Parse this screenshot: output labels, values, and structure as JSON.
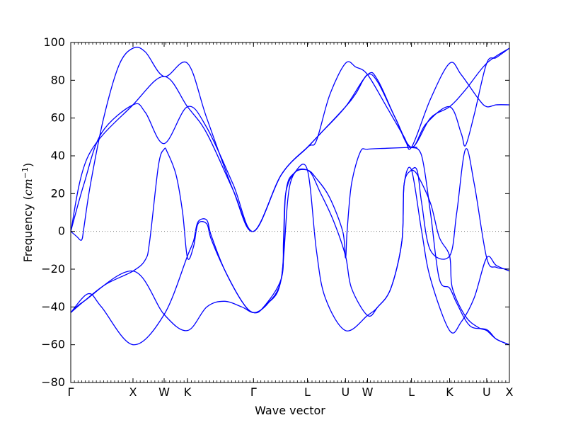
{
  "chart_data": {
    "type": "line",
    "title": "",
    "xlabel": "Wave vector",
    "ylabel": "Frequency (cm⁻¹)",
    "ylabel_prefix": "Frequency (",
    "ylabel_unit": "cm",
    "ylabel_exp": "−1",
    "ylabel_suffix": ")",
    "ylim": [
      -80,
      100
    ],
    "xlim": [
      0,
      1
    ],
    "grid": false,
    "line_color": "#0000ff",
    "zero_line_color": "#808080",
    "yticks": [
      -80,
      -60,
      -40,
      -20,
      0,
      20,
      40,
      60,
      80,
      100
    ],
    "ytick_labels": [
      "−80",
      "−60",
      "−40",
      "−20",
      "0",
      "20",
      "40",
      "60",
      "80",
      "100"
    ],
    "high_symmetry_points": [
      {
        "label": "Γ",
        "x": 0.0
      },
      {
        "label": "X",
        "x": 0.1419
      },
      {
        "label": "W",
        "x": 0.2129
      },
      {
        "label": "K",
        "x": 0.2661
      },
      {
        "label": "Γ",
        "x": 0.4166
      },
      {
        "label": "L",
        "x": 0.5395
      },
      {
        "label": "U",
        "x": 0.6264
      },
      {
        "label": "W",
        "x": 0.6766
      },
      {
        "label": "L",
        "x": 0.7768
      },
      {
        "label": "K",
        "x": 0.8637
      },
      {
        "label": "U",
        "x": 0.9482
      },
      {
        "label": "X",
        "x": 1.0
      }
    ],
    "series": [
      {
        "values": [
          [
            0,
            0
          ],
          [
            0.015,
            -3
          ],
          [
            0.021,
            -4.5
          ],
          [
            0.026,
            -4
          ],
          [
            0.03,
            2
          ],
          [
            0.045,
            25
          ],
          [
            0.075,
            60
          ],
          [
            0.11,
            88
          ],
          [
            0.1419,
            97
          ],
          [
            0.17,
            95
          ],
          [
            0.2129,
            82
          ],
          [
            0.2661,
            89
          ],
          [
            0.31,
            60
          ],
          [
            0.37,
            22
          ],
          [
            0.4166,
            0
          ],
          [
            0.48,
            30
          ],
          [
            0.5395,
            44.5
          ],
          [
            0.56,
            48
          ],
          [
            0.59,
            72
          ],
          [
            0.6264,
            89
          ],
          [
            0.65,
            87
          ],
          [
            0.6766,
            83
          ],
          [
            0.72,
            66
          ],
          [
            0.76,
            50
          ],
          [
            0.7768,
            44.5
          ],
          [
            0.82,
            70
          ],
          [
            0.8637,
            89
          ],
          [
            0.89,
            83
          ],
          [
            0.93,
            70
          ],
          [
            0.9482,
            66
          ],
          [
            0.97,
            67
          ],
          [
            1.0,
            67
          ]
        ]
      },
      {
        "values": [
          [
            0,
            0
          ],
          [
            0.03,
            25
          ],
          [
            0.07,
            52
          ],
          [
            0.1419,
            67
          ],
          [
            0.17,
            63
          ],
          [
            0.2129,
            46.5
          ],
          [
            0.2661,
            66
          ],
          [
            0.31,
            55
          ],
          [
            0.37,
            25
          ],
          [
            0.4166,
            0
          ],
          [
            0.48,
            30
          ],
          [
            0.5395,
            44.5
          ],
          [
            0.57,
            52
          ],
          [
            0.6264,
            66
          ],
          [
            0.65,
            73
          ],
          [
            0.6766,
            83
          ],
          [
            0.7,
            79
          ],
          [
            0.74,
            60
          ],
          [
            0.7768,
            44.5
          ],
          [
            0.81,
            57
          ],
          [
            0.8637,
            66
          ],
          [
            0.89,
            52
          ],
          [
            0.9,
            45.5
          ],
          [
            0.92,
            62
          ],
          [
            0.9482,
            89
          ],
          [
            0.97,
            92
          ],
          [
            1.0,
            97
          ]
        ]
      },
      {
        "values": [
          [
            0,
            0
          ],
          [
            0.04,
            40
          ],
          [
            0.1419,
            67
          ],
          [
            0.2129,
            82
          ],
          [
            0.2661,
            66
          ],
          [
            0.31,
            52
          ],
          [
            0.37,
            22
          ],
          [
            0.4166,
            0
          ],
          [
            0.48,
            30
          ],
          [
            0.5395,
            44.5
          ],
          [
            0.57,
            52
          ],
          [
            0.6264,
            66
          ],
          [
            0.6766,
            83
          ],
          [
            0.7,
            80
          ],
          [
            0.74,
            60
          ],
          [
            0.7768,
            44.5
          ],
          [
            0.82,
            60
          ],
          [
            0.8637,
            66
          ],
          [
            0.9,
            75
          ],
          [
            0.9482,
            89
          ],
          [
            1.0,
            97
          ]
        ]
      },
      {
        "values": [
          [
            0,
            -43
          ],
          [
            0.03,
            -37
          ],
          [
            0.08,
            -28
          ],
          [
            0.1419,
            -21
          ],
          [
            0.17,
            -15
          ],
          [
            0.18,
            -5
          ],
          [
            0.2,
            35
          ],
          [
            0.2129,
            43.5
          ],
          [
            0.22,
            42
          ],
          [
            0.24,
            30
          ],
          [
            0.255,
            10
          ],
          [
            0.2661,
            -14
          ],
          [
            0.28,
            -8
          ],
          [
            0.29,
            4
          ],
          [
            0.31,
            4
          ],
          [
            0.32,
            -4
          ],
          [
            0.35,
            -20
          ],
          [
            0.39,
            -37
          ],
          [
            0.4166,
            -43
          ],
          [
            0.44,
            -40
          ],
          [
            0.48,
            -25
          ],
          [
            0.485,
            -5
          ],
          [
            0.49,
            20
          ],
          [
            0.51,
            31
          ],
          [
            0.5395,
            32.5
          ],
          [
            0.56,
            28
          ],
          [
            0.59,
            18
          ],
          [
            0.62,
            0
          ],
          [
            0.6264,
            -14
          ],
          [
            0.63,
            0
          ],
          [
            0.64,
            25
          ],
          [
            0.66,
            42
          ],
          [
            0.6766,
            43.5
          ],
          [
            0.72,
            44
          ],
          [
            0.7768,
            44.5
          ],
          [
            0.79,
            44.5
          ]
        ]
      },
      {
        "values": [
          [
            0.7768,
            32.5
          ],
          [
            0.79,
            30
          ],
          [
            0.82,
            15
          ],
          [
            0.84,
            -3
          ],
          [
            0.8637,
            -13
          ],
          [
            0.87,
            -30
          ],
          [
            0.9,
            -45
          ],
          [
            0.93,
            -51
          ],
          [
            0.9482,
            -52.5
          ],
          [
            0.97,
            -57
          ],
          [
            1.0,
            -60
          ]
        ]
      },
      {
        "values": [
          [
            0,
            -43
          ],
          [
            0.03,
            -37
          ],
          [
            0.1419,
            -21
          ],
          [
            0.2129,
            -44
          ],
          [
            0.2661,
            -52.5
          ],
          [
            0.31,
            -40
          ],
          [
            0.35,
            -37
          ],
          [
            0.39,
            -40
          ],
          [
            0.4166,
            -43
          ],
          [
            0.44,
            -40
          ],
          [
            0.48,
            -25
          ],
          [
            0.49,
            20
          ],
          [
            0.51,
            31
          ],
          [
            0.5395,
            32.5
          ],
          [
            0.56,
            -10
          ],
          [
            0.58,
            -35
          ],
          [
            0.6264,
            -52.5
          ],
          [
            0.6766,
            -44.5
          ],
          [
            0.7,
            -40
          ],
          [
            0.73,
            -30
          ],
          [
            0.755,
            -5
          ],
          [
            0.76,
            25
          ],
          [
            0.7768,
            32.5
          ],
          [
            0.8,
            0
          ],
          [
            0.82,
            -25
          ],
          [
            0.8637,
            -52.5
          ],
          [
            0.89,
            -48
          ],
          [
            0.92,
            -35
          ],
          [
            0.9482,
            -14
          ],
          [
            0.97,
            -18
          ],
          [
            1.0,
            -21
          ]
        ]
      },
      {
        "values": [
          [
            0,
            -43
          ],
          [
            0.04,
            -33
          ],
          [
            0.07,
            -40
          ],
          [
            0.1419,
            -60
          ],
          [
            0.2129,
            -44
          ],
          [
            0.2661,
            -13
          ],
          [
            0.28,
            -5
          ],
          [
            0.29,
            5
          ],
          [
            0.31,
            6
          ],
          [
            0.32,
            -2
          ],
          [
            0.35,
            -20
          ],
          [
            0.39,
            -37
          ],
          [
            0.4166,
            -43
          ],
          [
            0.45,
            -38
          ],
          [
            0.48,
            -25
          ],
          [
            0.5,
            25
          ],
          [
            0.5395,
            32.5
          ],
          [
            0.57,
            20
          ],
          [
            0.6,
            5
          ],
          [
            0.6264,
            -13
          ],
          [
            0.64,
            -30
          ],
          [
            0.6766,
            -44.5
          ],
          [
            0.7,
            -40
          ],
          [
            0.73,
            -30
          ],
          [
            0.755,
            -5
          ],
          [
            0.76,
            25
          ],
          [
            0.7768,
            32.5
          ],
          [
            0.79,
            32
          ],
          [
            0.8,
            15
          ],
          [
            0.82,
            -10
          ],
          [
            0.8637,
            -13
          ],
          [
            0.88,
            10
          ],
          [
            0.9,
            43.5
          ],
          [
            0.92,
            25
          ],
          [
            0.9482,
            -14
          ],
          [
            0.97,
            -19
          ],
          [
            1.0,
            -20
          ]
        ]
      },
      {
        "values": [
          [
            0.7768,
            44.5
          ],
          [
            0.8,
            40
          ],
          [
            0.82,
            10
          ],
          [
            0.84,
            -25
          ],
          [
            0.8637,
            -30
          ],
          [
            0.88,
            -38
          ],
          [
            0.91,
            -50
          ],
          [
            0.9482,
            -52
          ],
          [
            0.97,
            -57
          ],
          [
            1.0,
            -60
          ]
        ]
      }
    ]
  }
}
